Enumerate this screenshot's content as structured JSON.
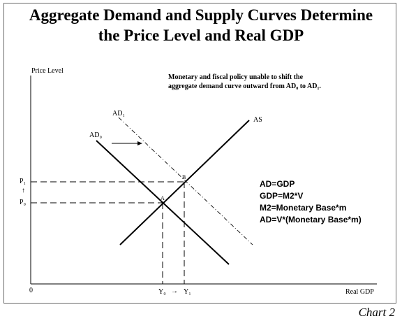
{
  "title": {
    "line1": "Aggregate Demand and Supply Curves Determine",
    "line2": "the Price Level and Real GDP"
  },
  "note": {
    "line1": "Monetary and fiscal policy unable to shift the",
    "line2": "aggregate demand curve outward from AD₀ to AD₁."
  },
  "equations": [
    "AD=GDP",
    "GDP=M2*V",
    "M2=Monetary Base*m",
    "AD=V*(Monetary Base*m)"
  ],
  "caption": "Chart 2",
  "chart_data": {
    "type": "line",
    "xlabel": "Real GDP",
    "ylabel": "Price Level",
    "origin_label": "0",
    "x_tick_labels": [
      "Y₀",
      "Y₁"
    ],
    "y_tick_labels": [
      "P₁",
      "P₀"
    ],
    "shift_arrow_glyph": "→",
    "price_arrow_glyph": "↑",
    "curves": [
      {
        "name": "AS",
        "style": "solid"
      },
      {
        "name": "AD₀",
        "style": "solid"
      },
      {
        "name": "AD₁",
        "style": "dash-dot"
      }
    ],
    "points": [
      {
        "label": "A",
        "x": "Y₀",
        "y": "P₀"
      },
      {
        "label": "B",
        "x": "Y₁",
        "y": "P₁"
      }
    ]
  }
}
